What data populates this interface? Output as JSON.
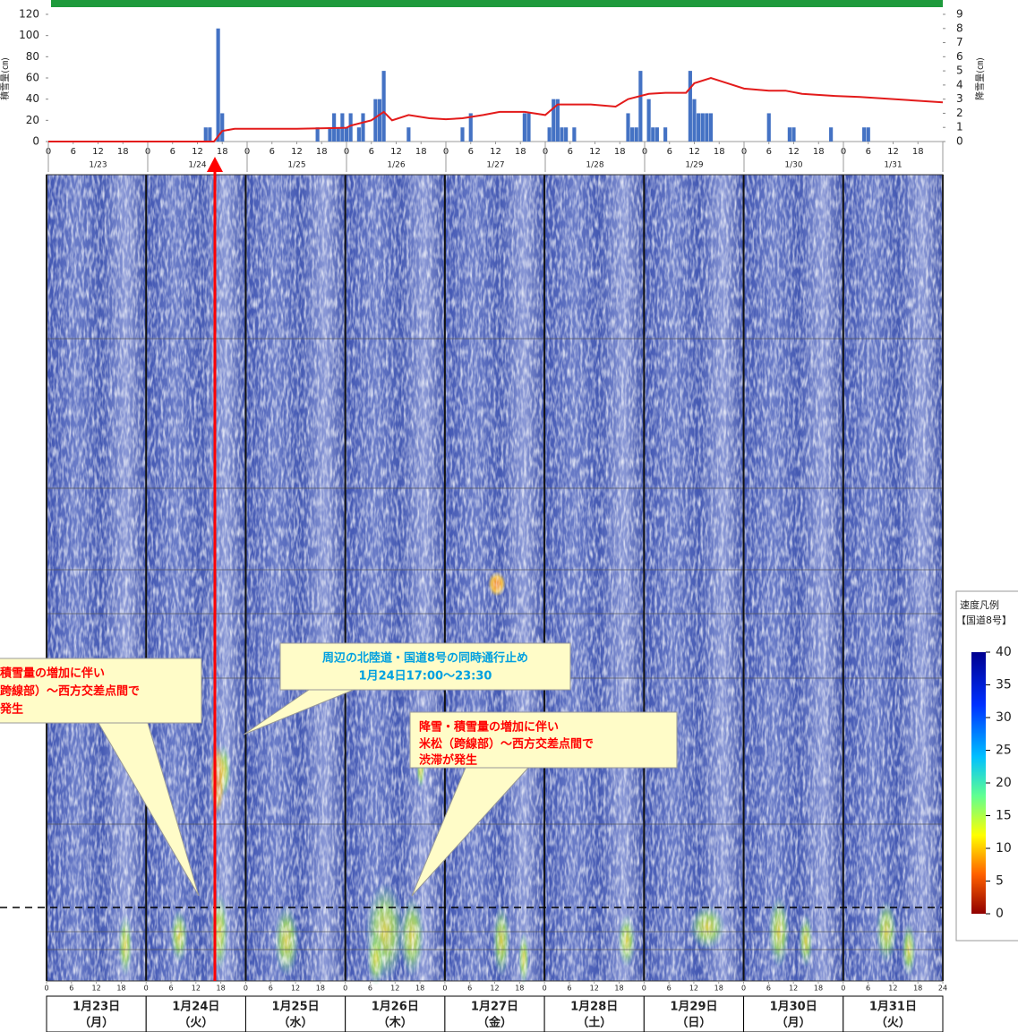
{
  "chart_data": [
    {
      "type": "combo",
      "ylabel": "積雪量(㎝)",
      "y2label": "降雪量(㎝)",
      "xlim": [
        0,
        216
      ],
      "ylim": [
        0,
        120
      ],
      "yticks": [
        0,
        20,
        40,
        60,
        80,
        100,
        120
      ],
      "y2lim": [
        0,
        9
      ],
      "y2ticks": [
        0,
        1,
        2,
        3,
        4,
        5,
        6,
        7,
        8,
        9
      ],
      "categories": [
        "1/23",
        "1/24",
        "1/25",
        "1/26",
        "1/27",
        "1/28",
        "1/29",
        "1/30",
        "1/31"
      ],
      "xticks": [
        {
          "value": 0,
          "label": "0"
        },
        {
          "value": 6,
          "label": "6"
        },
        {
          "value": 12,
          "label": "12"
        },
        {
          "value": 18,
          "label": "18"
        },
        {
          "value": 24,
          "label": "0"
        },
        {
          "value": 30,
          "label": "6"
        },
        {
          "value": 36,
          "label": "12"
        },
        {
          "value": 42,
          "label": "18"
        },
        {
          "value": 48,
          "label": "0"
        },
        {
          "value": 54,
          "label": "6"
        },
        {
          "value": 60,
          "label": "12"
        },
        {
          "value": 66,
          "label": "18"
        },
        {
          "value": 72,
          "label": "0"
        },
        {
          "value": 78,
          "label": "6"
        },
        {
          "value": 84,
          "label": "12"
        },
        {
          "value": 90,
          "label": "18"
        },
        {
          "value": 96,
          "label": "0"
        },
        {
          "value": 102,
          "label": "6"
        },
        {
          "value": 108,
          "label": "12"
        },
        {
          "value": 114,
          "label": "18"
        },
        {
          "value": 120,
          "label": "0"
        },
        {
          "value": 126,
          "label": "6"
        },
        {
          "value": 132,
          "label": "12"
        },
        {
          "value": 138,
          "label": "18"
        },
        {
          "value": 144,
          "label": "0"
        },
        {
          "value": 150,
          "label": "6"
        },
        {
          "value": 156,
          "label": "12"
        },
        {
          "value": 162,
          "label": "18"
        },
        {
          "value": 168,
          "label": "0"
        },
        {
          "value": 174,
          "label": "6"
        },
        {
          "value": 180,
          "label": "12"
        },
        {
          "value": 186,
          "label": "18"
        },
        {
          "value": 192,
          "label": "0"
        },
        {
          "value": 198,
          "label": "6"
        },
        {
          "value": 204,
          "label": "12"
        },
        {
          "value": 210,
          "label": "18"
        }
      ],
      "series": [
        {
          "type": "bar",
          "axis": "y2",
          "color": "#4472c4",
          "x": [
            38,
            39,
            41,
            42,
            65,
            68,
            69,
            70,
            71,
            72,
            73,
            75,
            76,
            79,
            80,
            81,
            87,
            100,
            102,
            115,
            116,
            121,
            122,
            123,
            124,
            125,
            127,
            140,
            141,
            142,
            143,
            145,
            146,
            147,
            149,
            155,
            156,
            157,
            158,
            159,
            160,
            174,
            179,
            180,
            189,
            197,
            198
          ],
          "values": [
            1,
            1,
            8,
            2,
            1,
            1,
            2,
            1,
            2,
            1,
            2,
            1,
            2,
            3,
            3,
            5,
            1,
            1,
            2,
            2,
            2,
            1,
            3,
            3,
            1,
            1,
            1,
            2,
            1,
            1,
            5,
            3,
            1,
            1,
            1,
            5,
            3,
            2,
            2,
            2,
            2,
            2,
            1,
            1,
            1,
            1,
            1
          ]
        },
        {
          "type": "line",
          "color": "#e31b1b",
          "x": [
            0,
            40,
            42,
            45,
            60,
            72,
            73,
            78,
            81,
            83,
            87,
            92,
            96,
            100,
            105,
            109,
            115,
            120,
            123,
            131,
            137,
            140,
            145,
            149,
            154,
            156,
            160,
            164,
            168,
            174,
            178,
            182,
            190,
            196,
            204,
            216
          ],
          "values": [
            0,
            0,
            10,
            12,
            12,
            13,
            15,
            20,
            28,
            20,
            25,
            22,
            21,
            22,
            25,
            28,
            28,
            25,
            35,
            35,
            33,
            40,
            45,
            46,
            46,
            55,
            60,
            55,
            50,
            48,
            48,
            45,
            43,
            42,
            40,
            37
          ]
        }
      ]
    },
    {
      "type": "heatmap",
      "xlim": [
        0,
        216
      ],
      "categories": [
        "1月23日",
        "1月24日",
        "1月25日",
        "1月26日",
        "1月27日",
        "1月28日",
        "1月29日",
        "1月30日",
        "1月31日"
      ],
      "weekdays": [
        "（月）",
        "（火）",
        "（水）",
        "（木）",
        "（金）",
        "（土）",
        "（日）",
        "（月）",
        "（火）"
      ],
      "xticks": [
        {
          "value": 0,
          "label": "0"
        },
        {
          "value": 6,
          "label": "6"
        },
        {
          "value": 12,
          "label": "12"
        },
        {
          "value": 18,
          "label": "18"
        },
        {
          "value": 24,
          "label": "0"
        },
        {
          "value": 30,
          "label": "6"
        },
        {
          "value": 36,
          "label": "12"
        },
        {
          "value": 42,
          "label": "18"
        },
        {
          "value": 48,
          "label": "0"
        },
        {
          "value": 54,
          "label": "6"
        },
        {
          "value": 60,
          "label": "12"
        },
        {
          "value": 66,
          "label": "18"
        },
        {
          "value": 72,
          "label": "0"
        },
        {
          "value": 78,
          "label": "6"
        },
        {
          "value": 84,
          "label": "12"
        },
        {
          "value": 90,
          "label": "18"
        },
        {
          "value": 96,
          "label": "0"
        },
        {
          "value": 102,
          "label": "6"
        },
        {
          "value": 108,
          "label": "12"
        },
        {
          "value": 114,
          "label": "18"
        },
        {
          "value": 120,
          "label": "0"
        },
        {
          "value": 126,
          "label": "6"
        },
        {
          "value": 132,
          "label": "12"
        },
        {
          "value": 138,
          "label": "18"
        },
        {
          "value": 144,
          "label": "0"
        },
        {
          "value": 150,
          "label": "6"
        },
        {
          "value": 156,
          "label": "12"
        },
        {
          "value": 162,
          "label": "18"
        },
        {
          "value": 168,
          "label": "0"
        },
        {
          "value": 174,
          "label": "6"
        },
        {
          "value": 180,
          "label": "12"
        },
        {
          "value": 186,
          "label": "18"
        },
        {
          "value": 192,
          "label": "0"
        },
        {
          "value": 198,
          "label": "6"
        },
        {
          "value": 204,
          "label": "12"
        },
        {
          "value": 210,
          "label": "18"
        },
        {
          "value": 216,
          "label": "24"
        }
      ],
      "colorbar": {
        "title": "速度凡例",
        "subtitle": "【国道8号】",
        "lim": [
          0,
          40
        ],
        "ticks": [
          0,
          5,
          10,
          15,
          20,
          25,
          30,
          35,
          40
        ]
      },
      "annotations": [
        {
          "lines": [
            "積雪量の増加に伴い",
            "跨線部）～西方交差点間で",
            "発生"
          ],
          "color": "#ff0000"
        },
        {
          "lines": [
            "周辺の北陸道・国道8号の同時通行止め",
            "1月24日17:00～23:30"
          ],
          "color": "#00a0e0"
        },
        {
          "lines": [
            "降雪・積雪量の増加に伴い",
            "米松（跨線部）～西方交差点間で",
            "渋滞が発生"
          ],
          "color": "#ff0000"
        }
      ]
    }
  ]
}
